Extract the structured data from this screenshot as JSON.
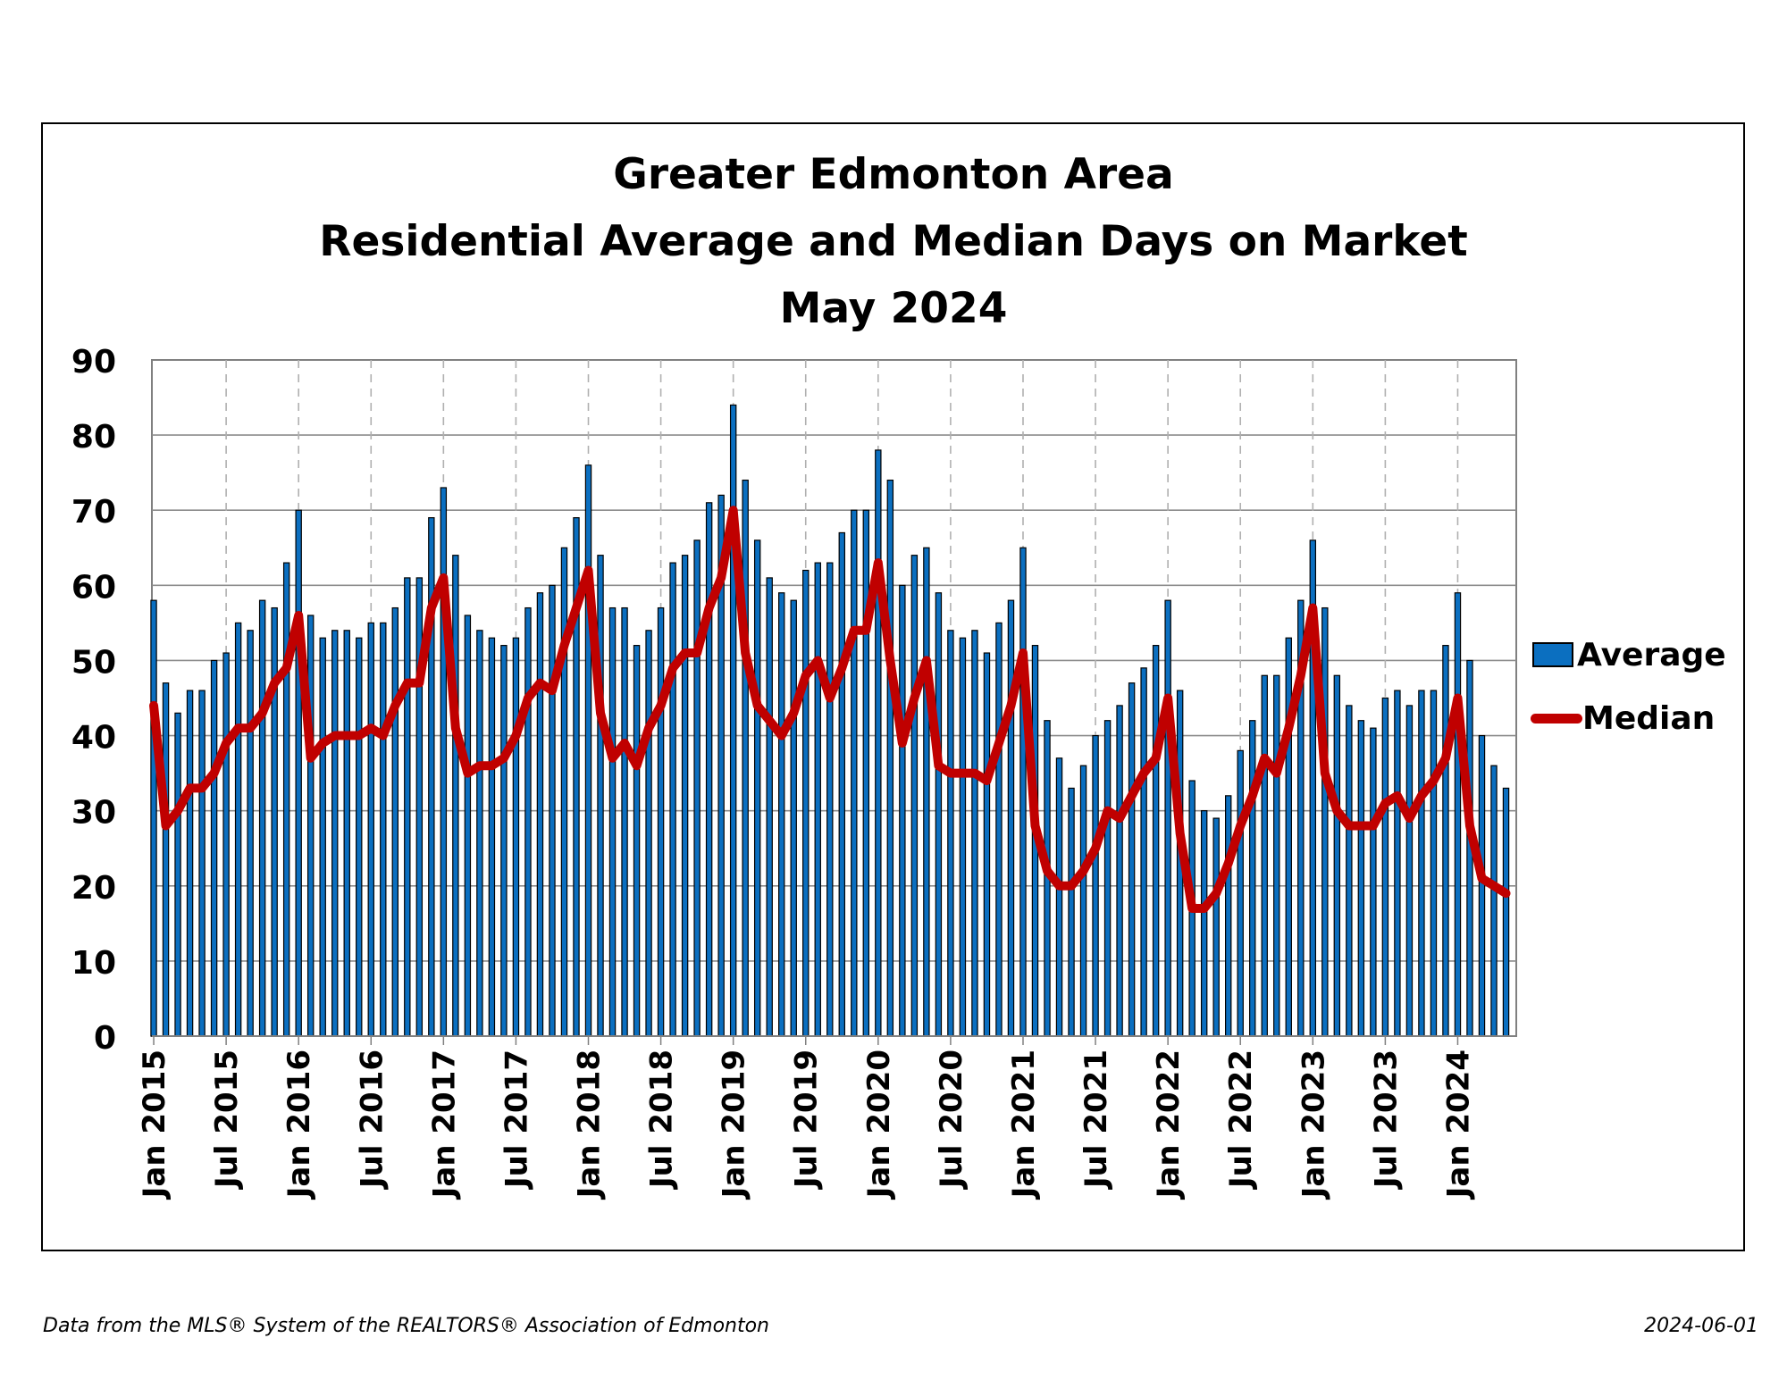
{
  "chart_data": {
    "type": "bar",
    "title": "Greater Edmonton Area",
    "subtitle": "Residential Average and Median Days on Market",
    "period": "May 2024",
    "ylim": [
      0,
      90
    ],
    "yticks": [
      0,
      10,
      20,
      30,
      40,
      50,
      60,
      70,
      80,
      90
    ],
    "x_tick_labels": [
      "Jan 2015",
      "Jul 2015",
      "Jan 2016",
      "Jul 2016",
      "Jan 2017",
      "Jul 2017",
      "Jan 2018",
      "Jul 2018",
      "Jan 2019",
      "Jul 2019",
      "Jan 2020",
      "Jul 2020",
      "Jan 2021",
      "Jul 2021",
      "Jan 2022",
      "Jul 2022",
      "Jan 2023",
      "Jul 2023",
      "Jan 2024"
    ],
    "x_start": "Jan 2015",
    "x_end": "May 2024",
    "grid": true,
    "legend_position": "right",
    "series": [
      {
        "name": "Average",
        "type": "bar",
        "color": "#0b6fc0",
        "values": [
          58,
          47,
          43,
          46,
          46,
          50,
          51,
          55,
          54,
          58,
          57,
          63,
          70,
          56,
          53,
          54,
          54,
          53,
          55,
          55,
          57,
          61,
          61,
          69,
          73,
          64,
          56,
          54,
          53,
          52,
          53,
          57,
          59,
          60,
          65,
          69,
          76,
          64,
          57,
          57,
          52,
          54,
          57,
          63,
          64,
          66,
          71,
          72,
          84,
          74,
          66,
          61,
          59,
          58,
          62,
          63,
          63,
          67,
          70,
          70,
          78,
          74,
          60,
          64,
          65,
          59,
          54,
          53,
          54,
          51,
          55,
          58,
          65,
          52,
          42,
          37,
          33,
          36,
          40,
          42,
          44,
          47,
          49,
          52,
          58,
          46,
          34,
          30,
          29,
          32,
          38,
          42,
          48,
          48,
          53,
          58,
          66,
          57,
          48,
          44,
          42,
          41,
          45,
          46,
          44,
          46,
          46,
          52,
          59,
          50,
          40,
          36,
          33
        ]
      },
      {
        "name": "Median",
        "type": "line",
        "color": "#c00000",
        "values": [
          44,
          28,
          30,
          33,
          33,
          35,
          39,
          41,
          41,
          43,
          47,
          49,
          56,
          37,
          39,
          40,
          40,
          40,
          41,
          40,
          44,
          47,
          47,
          57,
          61,
          41,
          35,
          36,
          36,
          37,
          40,
          45,
          47,
          46,
          52,
          57,
          62,
          43,
          37,
          39,
          36,
          41,
          44,
          49,
          51,
          51,
          57,
          61,
          70,
          51,
          44,
          42,
          40,
          43,
          48,
          50,
          45,
          49,
          54,
          54,
          63,
          50,
          39,
          45,
          50,
          36,
          35,
          35,
          35,
          34,
          39,
          44,
          51,
          28,
          22,
          20,
          20,
          22,
          25,
          30,
          29,
          32,
          35,
          37,
          45,
          27,
          17,
          17,
          19,
          23,
          28,
          32,
          37,
          35,
          41,
          48,
          57,
          35,
          30,
          28,
          28,
          28,
          31,
          32,
          29,
          32,
          34,
          37,
          45,
          28,
          21,
          20,
          19
        ]
      }
    ]
  },
  "legend": {
    "average_label": "Average",
    "median_label": "Median"
  },
  "footer": {
    "source": "Data from the MLS® System of the REALTORS® Association of Edmonton",
    "date": "2024-06-01"
  }
}
